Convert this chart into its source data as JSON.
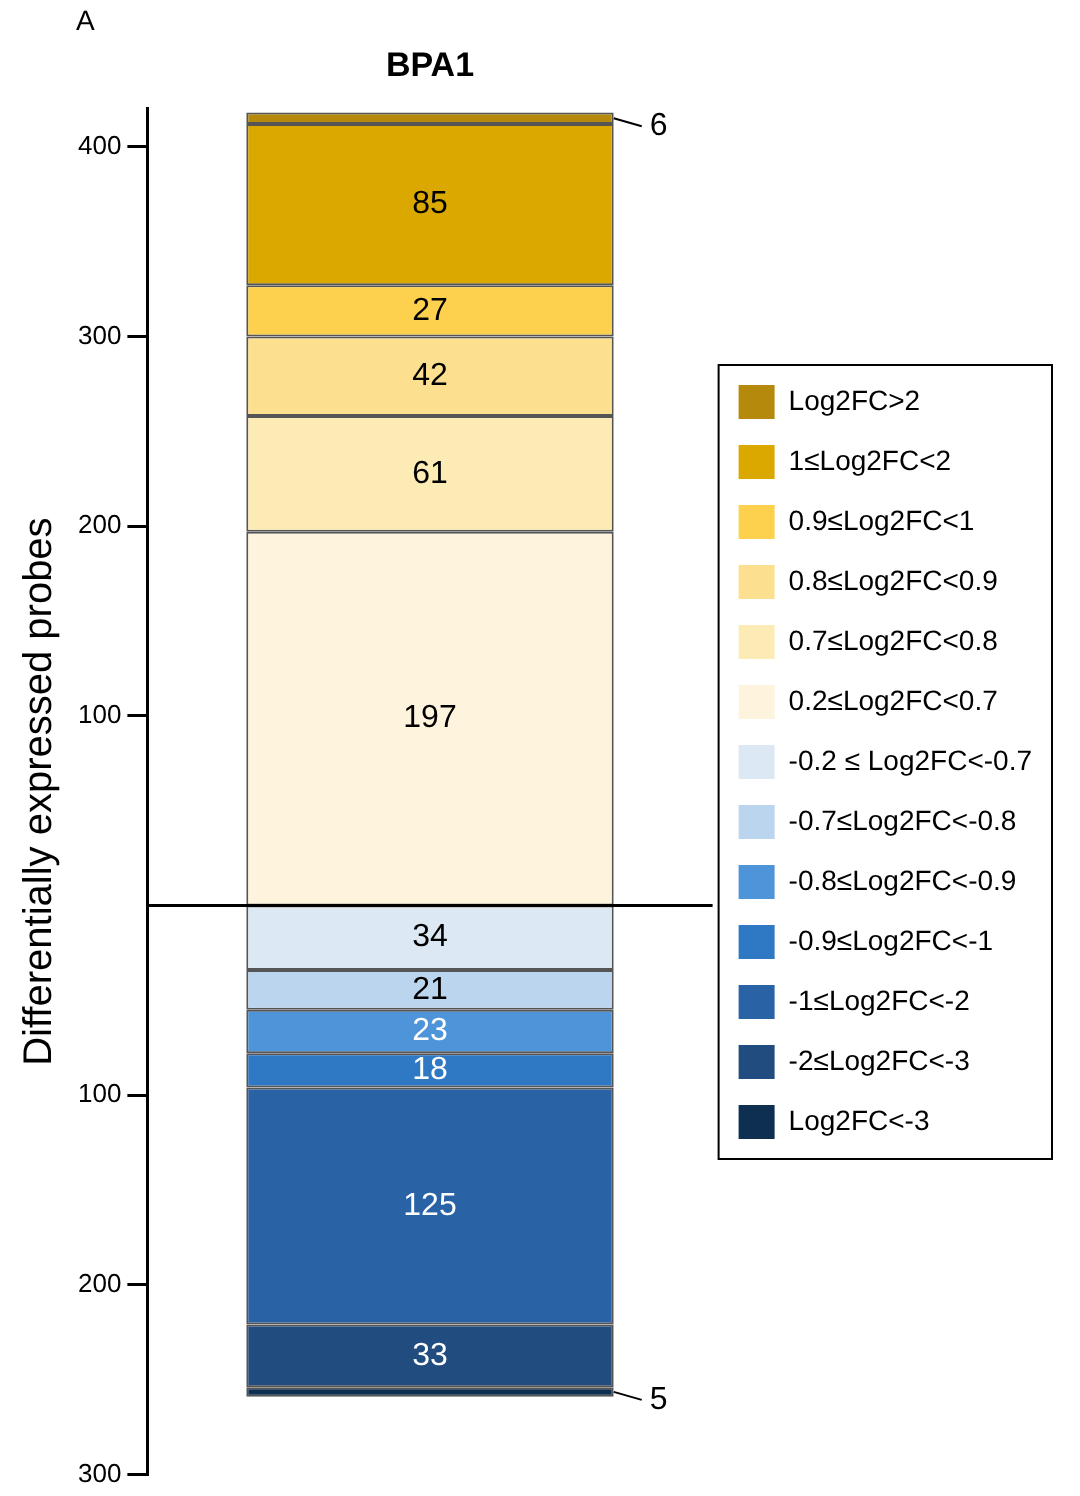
{
  "chart_data": {
    "type": "bar",
    "categories": [
      "BPA1"
    ],
    "ylabel": "Differentially expressed probes",
    "annotations": [
      "A"
    ],
    "ylim": [
      -300,
      420
    ],
    "yticks": [
      {
        "value": -300,
        "label": "300"
      },
      {
        "value": -200,
        "label": "200"
      },
      {
        "value": -100,
        "label": "100"
      },
      100,
      200,
      300,
      400
    ],
    "grid": false,
    "legend": "right",
    "ref_lines": [
      {
        "axis": "y",
        "value": 0
      }
    ],
    "series": [
      {
        "name": "0.2≤Log2FC<0.7",
        "color": "#fef3dc",
        "values": [
          197
        ],
        "base": [
          0
        ],
        "value_labels": [
          "197"
        ]
      },
      {
        "name": "0.7≤Log2FC<0.8",
        "color": "#fdebb5",
        "values": [
          61
        ],
        "base": [
          197
        ],
        "value_labels": [
          "61"
        ]
      },
      {
        "name": "0.8≤Log2FC<0.9",
        "color": "#fde08f",
        "values": [
          42
        ],
        "base": [
          258
        ],
        "value_labels": [
          "42"
        ]
      },
      {
        "name": "0.9≤Log2FC<1",
        "color": "#fdd04e",
        "values": [
          27
        ],
        "base": [
          300
        ],
        "value_labels": [
          "27"
        ]
      },
      {
        "name": "1≤Log2FC<2",
        "color": "#dba800",
        "values": [
          85
        ],
        "base": [
          327
        ],
        "value_labels": [
          "85"
        ]
      },
      {
        "name": "Log2FC>2",
        "color": "#b58a0c",
        "values": [
          6
        ],
        "base": [
          412
        ],
        "value_labels": [
          "6"
        ]
      },
      {
        "name": "-0.2 ≤ Log2FC<-0.7",
        "color": "#dde8f5",
        "values": [
          34
        ],
        "base": [
          -34
        ],
        "value_labels": [
          "34"
        ]
      },
      {
        "name": "-0.7≤Log2FC<-0.8",
        "color": "#bcd5ee",
        "values": [
          21
        ],
        "base": [
          -55
        ],
        "value_labels": [
          "21"
        ]
      },
      {
        "name": "-0.8≤Log2FC<-0.9",
        "color": "#4e94d8",
        "values": [
          23
        ],
        "base": [
          -78
        ],
        "value_labels": [
          "23"
        ]
      },
      {
        "name": "-0.9≤Log2FC<-1",
        "color": "#2f78c4",
        "values": [
          18
        ],
        "base": [
          -96
        ],
        "value_labels": [
          "18"
        ]
      },
      {
        "name": "-1≤Log2FC<-2",
        "color": "#2a63a5",
        "values": [
          125
        ],
        "base": [
          -221
        ],
        "value_labels": [
          "125"
        ]
      },
      {
        "name": "-2≤Log2FC<-3",
        "color": "#214c80",
        "values": [
          33
        ],
        "base": [
          -254
        ],
        "value_labels": [
          "33"
        ]
      },
      {
        "name": "Log2FC<-3",
        "color": "#0f2f50",
        "values": [
          5
        ],
        "base": [
          -259
        ],
        "value_labels": [
          "5"
        ]
      }
    ]
  }
}
